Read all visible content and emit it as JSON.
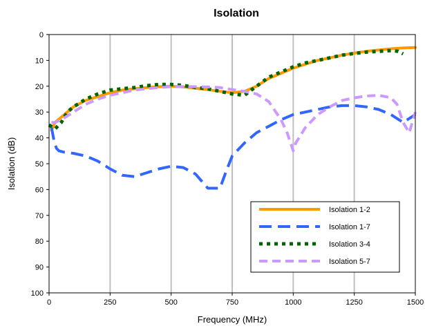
{
  "chart_data": {
    "type": "line",
    "title": "Isolation",
    "xlabel": "Frequency (MHz)",
    "ylabel": "Isolation (dB)",
    "xlim": [
      0,
      1500
    ],
    "ylim": [
      0,
      100
    ],
    "y_inverted": true,
    "x_ticks": [
      0,
      250,
      500,
      750,
      1000,
      1250,
      1500
    ],
    "x_tick_labels": [
      "0",
      "250",
      "500",
      "750",
      "1000",
      "1250",
      "1500"
    ],
    "y_ticks": [
      0,
      10,
      20,
      30,
      40,
      50,
      60,
      70,
      80,
      90,
      100
    ],
    "y_tick_labels": [
      "0",
      "10",
      "20",
      "30",
      "40",
      "50",
      "60",
      "70",
      "80",
      "90",
      "100"
    ],
    "grid": "vertical",
    "legend_position": "bottom-right",
    "series": [
      {
        "name": "Isolation 1-2",
        "color": "#FF9900",
        "dash": "solid",
        "x": [
          10,
          25,
          50,
          75,
          100,
          150,
          200,
          250,
          300,
          350,
          400,
          450,
          500,
          550,
          600,
          650,
          700,
          750,
          800,
          850,
          900,
          950,
          1000,
          1050,
          1100,
          1150,
          1200,
          1250,
          1300,
          1350,
          1400,
          1450,
          1500
        ],
        "y": [
          37,
          34,
          32,
          30,
          28,
          25.5,
          24,
          22.5,
          21.5,
          21,
          20.5,
          20.2,
          20,
          20.3,
          20.8,
          21.3,
          22,
          22.5,
          22,
          20,
          17,
          15,
          13,
          11.5,
          10,
          9,
          8,
          7.2,
          6.5,
          6,
          5.5,
          5.2,
          5
        ]
      },
      {
        "name": "Isolation 1-7",
        "color": "#3366FF",
        "dash": "long-dash",
        "x": [
          10,
          20,
          30,
          40,
          60,
          100,
          150,
          200,
          250,
          300,
          350,
          400,
          450,
          500,
          550,
          600,
          650,
          700,
          725,
          750,
          800,
          850,
          900,
          950,
          1000,
          1050,
          1100,
          1150,
          1200,
          1250,
          1300,
          1350,
          1400,
          1450,
          1500
        ],
        "y": [
          36,
          41,
          44,
          45,
          45.5,
          46,
          47,
          49,
          52,
          54.5,
          55,
          53.5,
          52,
          51,
          51.5,
          54,
          59.5,
          59.5,
          53,
          47,
          42,
          38,
          35.5,
          33,
          31,
          30,
          29,
          28,
          27.5,
          27.5,
          28,
          29,
          31,
          34,
          31
        ]
      },
      {
        "name": "Isolation 3-4",
        "color": "#006600",
        "dash": "square-dot",
        "x": [
          0,
          25,
          50,
          75,
          100,
          150,
          200,
          250,
          300,
          350,
          400,
          450,
          500,
          550,
          600,
          650,
          700,
          750,
          800,
          850,
          900,
          950,
          1000,
          1050,
          1100,
          1150,
          1200,
          1250,
          1300,
          1350,
          1400,
          1430,
          1450
        ],
        "y": [
          35,
          36.5,
          34,
          30,
          28,
          25,
          23,
          21.5,
          21,
          20.5,
          19.8,
          19.3,
          19.3,
          19.7,
          20.5,
          21,
          22,
          23,
          23.5,
          20,
          16.5,
          14.5,
          12.5,
          11,
          10,
          9,
          8,
          7.3,
          6.8,
          6.5,
          6.2,
          6.5,
          7.5
        ]
      },
      {
        "name": "Isolation 5-7",
        "color": "#CC99FF",
        "dash": "dash",
        "x": [
          10,
          25,
          50,
          100,
          150,
          200,
          250,
          300,
          350,
          400,
          450,
          500,
          550,
          600,
          650,
          700,
          750,
          800,
          850,
          900,
          950,
          975,
          1000,
          1010,
          1050,
          1100,
          1150,
          1200,
          1250,
          1300,
          1350,
          1400,
          1425,
          1450,
          1475,
          1500
        ],
        "y": [
          34,
          34,
          33,
          30,
          27,
          25,
          23.5,
          22.5,
          21.5,
          21,
          20.5,
          20.2,
          20.1,
          20.2,
          20.3,
          20.5,
          21.3,
          22,
          23,
          26,
          33,
          38,
          45,
          42,
          36,
          31,
          28,
          25.5,
          24.5,
          23.8,
          23.5,
          24.5,
          27,
          34,
          38,
          30
        ]
      }
    ]
  }
}
